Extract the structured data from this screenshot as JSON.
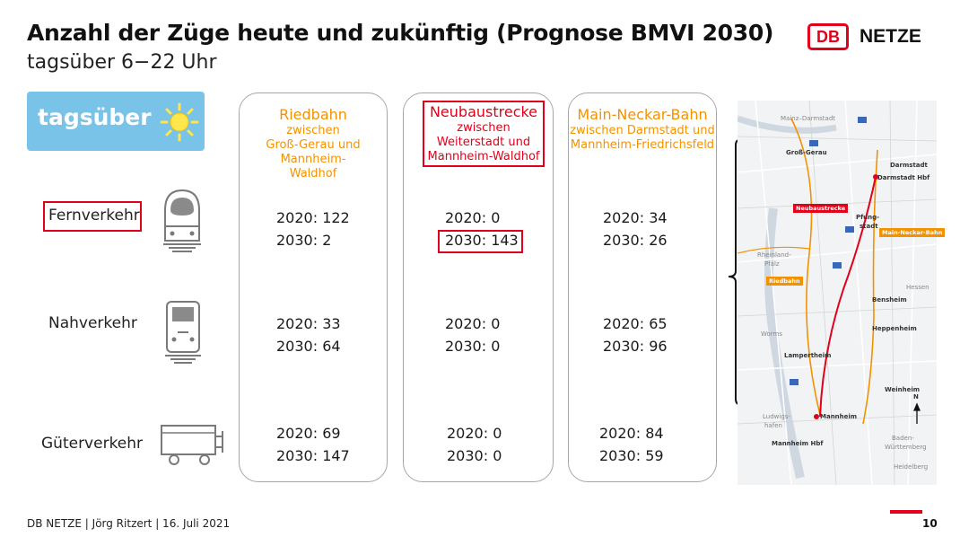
{
  "header": {
    "title": "Anzahl der Züge heute und zukünftig (Prognose BMVI 2030)",
    "subtitle": "tagsüber 6−22 Uhr"
  },
  "logo": {
    "mark": "DB",
    "text": "NETZE"
  },
  "badge": {
    "label": "tagsüber",
    "icon": "sun-icon",
    "color": "#79c2e8"
  },
  "rows": [
    {
      "label": "Fernverkehr",
      "icon": "ice-train-icon"
    },
    {
      "label": "Nahverkehr",
      "icon": "regional-train-icon"
    },
    {
      "label": "Güterverkehr",
      "icon": "freight-wagon-icon"
    }
  ],
  "columns": [
    {
      "name": "Riedbahn",
      "desc1": "zwischen",
      "desc2": "Groß-Gerau und",
      "desc3": "Mannheim-",
      "desc4": "Waldhof",
      "fern": [
        "2020: 122",
        "2030: 2"
      ],
      "nah": [
        "2020: 33",
        "2030: 64"
      ],
      "gueter": [
        "2020: 69",
        "2030: 147"
      ]
    },
    {
      "name": "Neubaustrecke",
      "desc1": "zwischen",
      "desc2": "Weiterstadt und",
      "desc3": "Mannheim-Waldhof",
      "fern": [
        "2020: 0",
        "2030: 143"
      ],
      "nah": [
        "2020: 0",
        "2030: 0"
      ],
      "gueter": [
        "2020: 0",
        "2030: 0"
      ]
    },
    {
      "name": "Main-Neckar-Bahn",
      "desc1": "zwischen Darmstadt und",
      "desc2": "Mannheim-Friedrichsfeld",
      "fern": [
        "2020: 34",
        "2030: 26"
      ],
      "nah": [
        "2020: 65",
        "2030: 96"
      ],
      "gueter": [
        "2020: 84",
        "2030: 59"
      ]
    }
  ],
  "map": {
    "labels": {
      "mainz": "Mainz–Darmstadt",
      "grossgerau": "Groß-Gerau",
      "darmstadt": "Darmstadt",
      "darmstadthbf": "Darmstadt Hbf",
      "neubau": "Neubaustrecke",
      "pfungstadt1": "Pfung-",
      "pfungstadt2": "stadt",
      "mnb": "Main-Neckar-Bahn",
      "rlp1": "Rheinland-",
      "rlp2": "Pfalz",
      "riedbahn": "Riedbahn",
      "hessen": "Hessen",
      "bensheim": "Bensheim",
      "heppenheim": "Heppenheim",
      "worms": "Worms",
      "lampertheim": "Lampertheim",
      "weinheim": "Weinheim",
      "north": "N",
      "ludwigs1": "Ludwigs-",
      "ludwigs2": "hafen",
      "mannheim": "Mannheim",
      "mannheimhbf": "Mannheim Hbf",
      "bw1": "Baden-",
      "bw2": "Württemberg",
      "heidelberg": "Heidelberg"
    },
    "colors": {
      "neubau": "#e2001a",
      "riedbahn": "#f39200",
      "mnb": "#f39200"
    }
  },
  "footer": {
    "text": "DB NETZE | Jörg Ritzert | 16. Juli 2021",
    "page": "10"
  }
}
